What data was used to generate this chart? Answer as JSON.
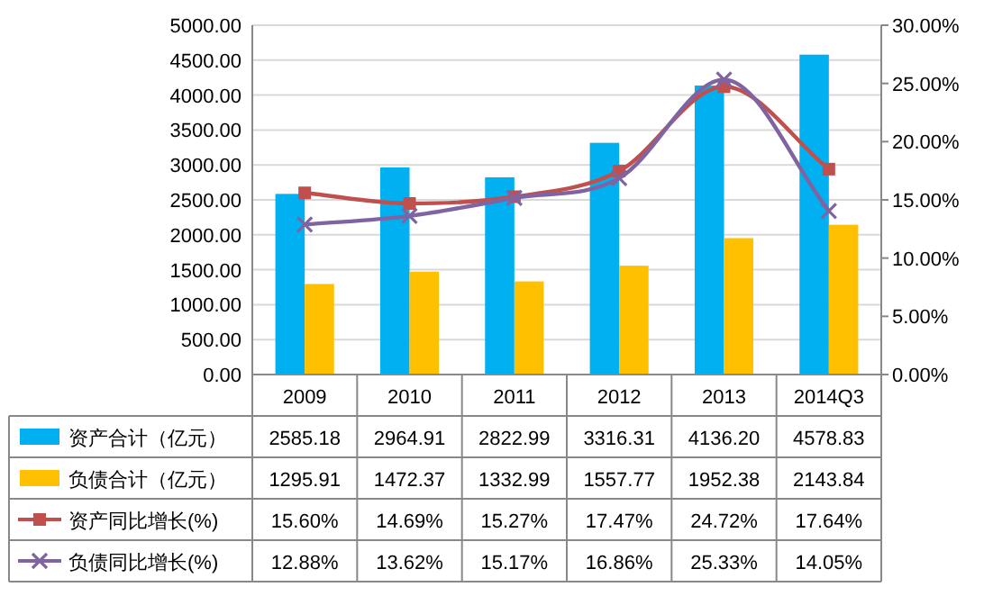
{
  "chart_data": {
    "type": "bar",
    "categories": [
      "2009",
      "2010",
      "2011",
      "2012",
      "2013",
      "2014Q3"
    ],
    "ylim": [
      0,
      5000
    ],
    "yticks": [
      {
        "value": 0,
        "label": "0.00"
      },
      {
        "value": 500,
        "label": "500.00"
      },
      {
        "value": 1000,
        "label": "1000.00"
      },
      {
        "value": 1500,
        "label": "1500.00"
      },
      {
        "value": 2000,
        "label": "2000.00"
      },
      {
        "value": 2500,
        "label": "2500.00"
      },
      {
        "value": 3000,
        "label": "3000.00"
      },
      {
        "value": 3500,
        "label": "3500.00"
      },
      {
        "value": 4000,
        "label": "4000.00"
      },
      {
        "value": 4500,
        "label": "4500.00"
      },
      {
        "value": 5000,
        "label": "5000.00"
      }
    ],
    "y2lim": [
      0,
      30
    ],
    "y2ticks": [
      {
        "value": 0,
        "label": "0.00%"
      },
      {
        "value": 5,
        "label": "5.00%"
      },
      {
        "value": 10,
        "label": "10.00%"
      },
      {
        "value": 15,
        "label": "15.00%"
      },
      {
        "value": 20,
        "label": "20.00%"
      },
      {
        "value": 25,
        "label": "25.00%"
      },
      {
        "value": 30,
        "label": "30.00%"
      }
    ],
    "grid": "y",
    "legend": "bottom",
    "series": [
      {
        "name": "资产合计（亿元）",
        "color": "#00b0f0",
        "values": [
          2585.18,
          2964.91,
          2822.99,
          3316.31,
          4136.2,
          4578.83
        ],
        "value_labels": [
          "2585.18",
          "2964.91",
          "2822.99",
          "3316.31",
          "4136.20",
          "4578.83"
        ]
      },
      {
        "name": "负债合计（亿元）",
        "color": "#ffc000",
        "values": [
          1295.91,
          1472.37,
          1332.99,
          1557.77,
          1952.38,
          2143.84
        ],
        "value_labels": [
          "1295.91",
          "1472.37",
          "1332.99",
          "1557.77",
          "1952.38",
          "2143.84"
        ]
      },
      {
        "name": "资产同比增长(%)",
        "type": "line",
        "axis": "y2",
        "color": "#c0504d",
        "marker": "square",
        "values": [
          15.6,
          14.69,
          15.27,
          17.47,
          24.72,
          17.64
        ],
        "value_labels": [
          "15.60%",
          "14.69%",
          "15.27%",
          "17.47%",
          "24.72%",
          "17.64%"
        ]
      },
      {
        "name": "负债同比增长(%)",
        "type": "line",
        "axis": "y2",
        "color": "#8064a2",
        "marker": "cross",
        "values": [
          12.88,
          13.62,
          15.17,
          16.86,
          25.33,
          14.05
        ],
        "value_labels": [
          "12.88%",
          "13.62%",
          "15.17%",
          "16.86%",
          "25.33%",
          "14.05%"
        ]
      }
    ]
  }
}
